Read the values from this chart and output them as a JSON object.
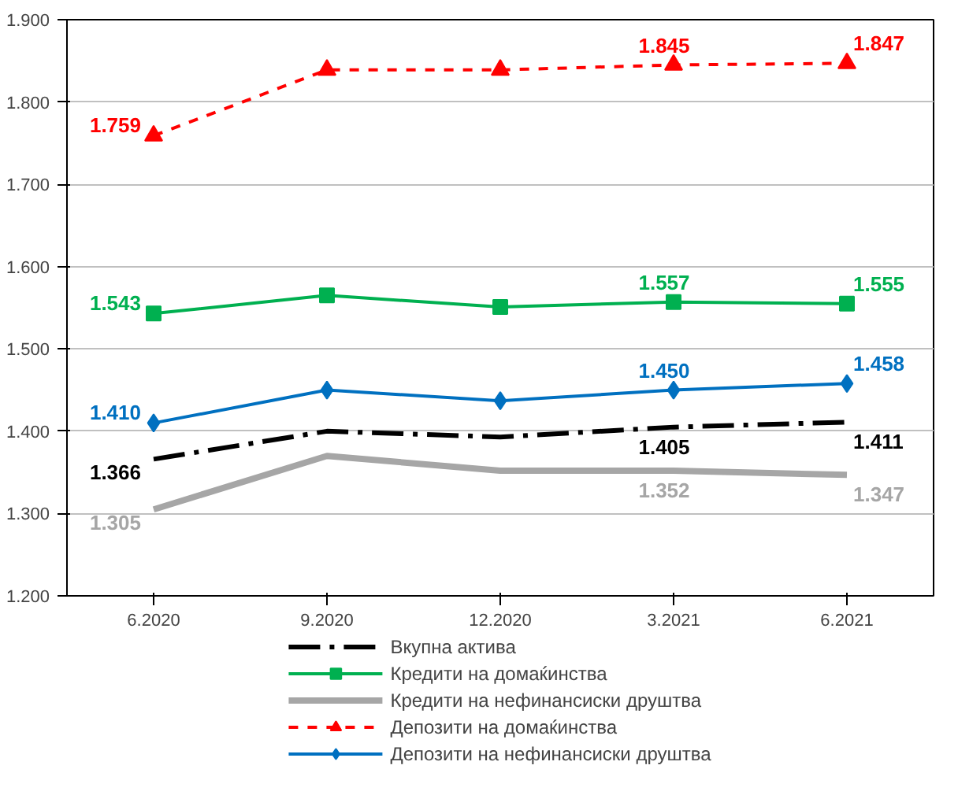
{
  "chart_data": {
    "type": "line",
    "categories": [
      "6.2020",
      "9.2020",
      "12.2020",
      "3.2021",
      "6.2021"
    ],
    "ylim": [
      1.2,
      1.9
    ],
    "yticks": [
      {
        "value": 1.2,
        "label": "1.200"
      },
      {
        "value": 1.3,
        "label": "1.300"
      },
      {
        "value": 1.4,
        "label": "1.400"
      },
      {
        "value": 1.5,
        "label": "1.500"
      },
      {
        "value": 1.6,
        "label": "1.600"
      },
      {
        "value": 1.7,
        "label": "1.700"
      },
      {
        "value": 1.8,
        "label": "1.800"
      },
      {
        "value": 1.9,
        "label": "1.900"
      }
    ],
    "grid": "y",
    "legend": "bottom",
    "series": [
      {
        "name": "Вкупна актива",
        "color": "#000000",
        "values": [
          1.366,
          1.4,
          1.393,
          1.405,
          1.411
        ],
        "line_style": "dashdot",
        "marker": "none",
        "value_labels": [
          "1.366",
          null,
          null,
          "1.405",
          "1.411"
        ]
      },
      {
        "name": "Кредити на домаќинства",
        "color": "#00b050",
        "values": [
          1.543,
          1.565,
          1.551,
          1.557,
          1.555
        ],
        "line_style": "solid",
        "marker": "square",
        "value_labels": [
          "1.543",
          null,
          null,
          "1.557",
          "1.555"
        ]
      },
      {
        "name": "Кредити на нефинансиски друштва",
        "color": "#a6a6a6",
        "values": [
          1.305,
          1.37,
          1.352,
          1.352,
          1.347
        ],
        "line_style": "solid",
        "marker": "none",
        "value_labels": [
          "1.305",
          null,
          null,
          "1.352",
          "1.347"
        ]
      },
      {
        "name": "Депозити на домаќинства",
        "color": "#ff0000",
        "values": [
          1.759,
          1.839,
          1.839,
          1.845,
          1.847
        ],
        "line_style": "dashed",
        "marker": "triangle",
        "value_labels": [
          "1.759",
          null,
          null,
          "1.845",
          "1.847"
        ]
      },
      {
        "name": "Депозити на нефинансиски друштва",
        "color": "#0070c0",
        "values": [
          1.41,
          1.45,
          1.437,
          1.45,
          1.458
        ],
        "line_style": "solid",
        "marker": "diamond",
        "value_labels": [
          "1.410",
          null,
          null,
          "1.450",
          "1.458"
        ]
      }
    ]
  }
}
